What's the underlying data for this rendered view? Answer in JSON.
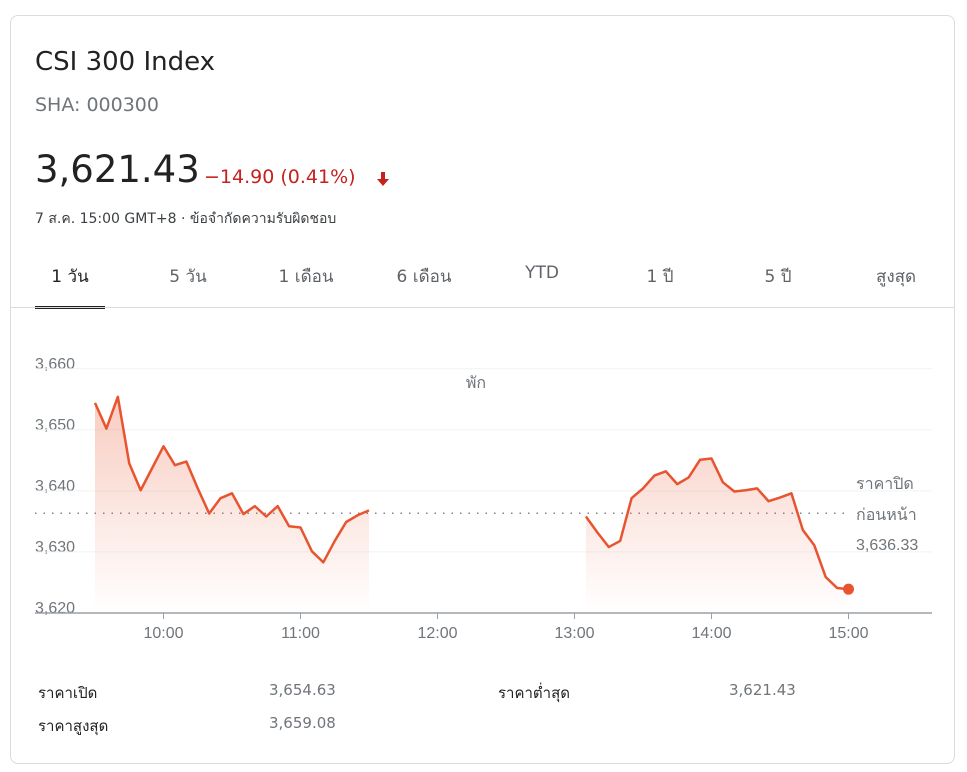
{
  "header": {
    "title": "CSI 300 Index",
    "ticker": "SHA: 000300",
    "price": "3,621.43",
    "change": "−14.90 (0.41%)",
    "timestamp": "7 ส.ค. 15:00 GMT+8 · ข้อจำกัดความรับผิดชอบ"
  },
  "tabs": [
    "1 วัน",
    "5 วัน",
    "1 เดือน",
    "6 เดือน",
    "YTD",
    "1 ปี",
    "5 ปี",
    "สูงสุด"
  ],
  "chart_data": {
    "type": "line",
    "x": [
      "9:30",
      "9:35",
      "9:40",
      "9:45",
      "9:50",
      "9:55",
      "10:00",
      "10:05",
      "10:10",
      "10:15",
      "10:20",
      "10:25",
      "10:30",
      "10:35",
      "10:40",
      "10:45",
      "10:50",
      "10:55",
      "11:00",
      "11:05",
      "11:10",
      "11:15",
      "11:20",
      "11:25",
      "11:30",
      "11:35",
      "11:40",
      "11:45",
      "11:50",
      "11:55",
      "12:00",
      "12:05",
      "12:10",
      "12:15",
      "12:20",
      "12:25",
      "12:30",
      "12:35",
      "12:40",
      "12:45",
      "12:50",
      "12:55",
      "13:00",
      "13:05",
      "13:10",
      "13:15",
      "13:20",
      "13:25",
      "13:30",
      "13:35",
      "13:40",
      "13:45",
      "13:50",
      "13:55",
      "14:00",
      "14:05",
      "14:10",
      "14:15",
      "14:20",
      "14:25",
      "14:30",
      "14:35",
      "14:40",
      "14:45",
      "14:50",
      "14:55",
      "15:00"
    ],
    "series": [
      {
        "color": "#e8542f",
        "values": [
          3654.4,
          3650.2,
          3655.4,
          3644.5,
          3640.1,
          3643.7,
          3647.3,
          3644.2,
          3644.8,
          3640.4,
          3636.3,
          3638.8,
          3639.6,
          3636.2,
          3637.5,
          3635.8,
          3637.5,
          3634.2,
          3634.0,
          3630.1,
          3628.3,
          3631.8,
          3634.9,
          3636.0,
          3636.8,
          null,
          null,
          null,
          null,
          null,
          null,
          null,
          null,
          null,
          null,
          null,
          null,
          null,
          null,
          null,
          null,
          null,
          null,
          3635.8,
          3633.2,
          3630.8,
          3631.8,
          3638.8,
          3640.4,
          3642.5,
          3643.2,
          3641.1,
          3642.2,
          3645.1,
          3645.3,
          3641.4,
          3639.9,
          3640.1,
          3640.4,
          3638.3,
          3638.9,
          3639.6,
          3633.6,
          3631.1,
          3625.9,
          3624.1,
          3623.9
        ]
      }
    ],
    "ylim": [
      3620,
      3664.7
    ],
    "yticks": [
      {
        "value": 3620,
        "label": "3,620"
      },
      {
        "value": 3630,
        "label": "3,630"
      },
      {
        "value": 3640,
        "label": "3,640"
      },
      {
        "value": 3650,
        "label": "3,650"
      },
      {
        "value": 3660,
        "label": "3,660"
      }
    ],
    "xticks": [
      "10:00",
      "11:00",
      "12:00",
      "13:00",
      "14:00",
      "15:00"
    ],
    "grid": true,
    "break_label": "พัก",
    "previous_close": {
      "label": [
        "ราคาปิด",
        "ก่อนหน้า"
      ],
      "value": 3636.33,
      "value_label": "3,636.33"
    }
  },
  "stats": [
    {
      "label": "ราคาเปิด",
      "value": "3,654.63"
    },
    {
      "label": "ราคาต่ำสุด",
      "value": "3,621.43"
    },
    {
      "label": "ราคาสูงสุด",
      "value": "3,659.08"
    }
  ]
}
